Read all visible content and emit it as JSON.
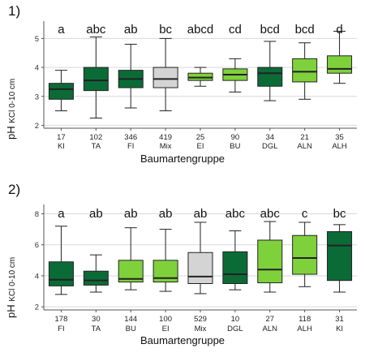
{
  "chart_data": [
    {
      "type": "boxplot",
      "panel_label": "1)",
      "ylabel": {
        "main": "pH ",
        "sub": "KCl 0-10 cm"
      },
      "xlabel": "Baumartengruppe",
      "ylim": [
        1.9,
        5.6
      ],
      "yticks": [
        2,
        3,
        4,
        5
      ],
      "grid": true,
      "categories": [
        "KI",
        "TA",
        "FI",
        "Mix",
        "EI",
        "BU",
        "DGL",
        "ALN",
        "ALH"
      ],
      "fill_colors": [
        "#0b6b37",
        "#0b6b37",
        "#0b6b37",
        "#d4d4d4",
        "#7fd13b",
        "#7fd13b",
        "#0b6b37",
        "#7fd13b",
        "#7fd13b"
      ],
      "letters": [
        "a",
        "abc",
        "ab",
        "bc",
        "abcd",
        "cd",
        "bcd",
        "bcd",
        "d"
      ],
      "counts": [
        "17",
        "102",
        "346",
        "419",
        "25",
        "90",
        "34",
        "21",
        "35"
      ],
      "boxes": [
        {
          "min": 2.5,
          "q1": 2.9,
          "median": 3.25,
          "q3": 3.45,
          "max": 3.9
        },
        {
          "min": 2.25,
          "q1": 3.2,
          "median": 3.55,
          "q3": 4.0,
          "max": 5.05
        },
        {
          "min": 2.6,
          "q1": 3.3,
          "median": 3.6,
          "q3": 3.9,
          "max": 4.8
        },
        {
          "min": 2.5,
          "q1": 3.3,
          "median": 3.6,
          "q3": 4.0,
          "max": 5.0
        },
        {
          "min": 3.35,
          "q1": 3.55,
          "median": 3.65,
          "q3": 3.8,
          "max": 4.0
        },
        {
          "min": 3.15,
          "q1": 3.55,
          "median": 3.75,
          "q3": 3.95,
          "max": 4.3
        },
        {
          "min": 2.85,
          "q1": 3.35,
          "median": 3.8,
          "q3": 4.0,
          "max": 4.9
        },
        {
          "min": 2.9,
          "q1": 3.5,
          "median": 3.85,
          "q3": 4.3,
          "max": 4.85
        },
        {
          "min": 3.45,
          "q1": 3.8,
          "median": 3.95,
          "q3": 4.4,
          "max": 5.25
        }
      ]
    },
    {
      "type": "boxplot",
      "panel_label": "2)",
      "ylabel": {
        "main": "pH ",
        "sub": "KCl 0-10 cm"
      },
      "xlabel": "Baumartengruppe",
      "ylim": [
        1.8,
        8.6
      ],
      "yticks": [
        2,
        4,
        6,
        8
      ],
      "grid": true,
      "categories": [
        "FI",
        "TA",
        "BU",
        "EI",
        "Mix",
        "DGL",
        "ALN",
        "ALH",
        "KI"
      ],
      "fill_colors": [
        "#0b6b37",
        "#0b6b37",
        "#7fd13b",
        "#7fd13b",
        "#d4d4d4",
        "#0b6b37",
        "#7fd13b",
        "#7fd13b",
        "#0b6b37"
      ],
      "letters": [
        "a",
        "ab",
        "ab",
        "ab",
        "ab",
        "abc",
        "abc",
        "c",
        "bc"
      ],
      "counts": [
        "178",
        "30",
        "144",
        "100",
        "529",
        "10",
        "27",
        "118",
        "31"
      ],
      "boxes": [
        {
          "min": 2.8,
          "q1": 3.35,
          "median": 3.75,
          "q3": 4.9,
          "max": 7.2
        },
        {
          "min": 2.95,
          "q1": 3.4,
          "median": 3.7,
          "q3": 4.3,
          "max": 5.35
        },
        {
          "min": 3.1,
          "q1": 3.6,
          "median": 3.8,
          "q3": 5.0,
          "max": 7.1
        },
        {
          "min": 3.0,
          "q1": 3.6,
          "median": 3.85,
          "q3": 5.0,
          "max": 7.0
        },
        {
          "min": 2.85,
          "q1": 3.5,
          "median": 3.95,
          "q3": 5.5,
          "max": 7.45
        },
        {
          "min": 3.1,
          "q1": 3.5,
          "median": 4.1,
          "q3": 5.55,
          "max": 6.9
        },
        {
          "min": 2.95,
          "q1": 3.55,
          "median": 4.4,
          "q3": 6.3,
          "max": 7.5
        },
        {
          "min": 3.3,
          "q1": 4.1,
          "median": 5.15,
          "q3": 6.6,
          "max": 7.45
        },
        {
          "min": 2.95,
          "q1": 3.7,
          "median": 5.95,
          "q3": 6.85,
          "max": 7.3
        }
      ]
    }
  ]
}
